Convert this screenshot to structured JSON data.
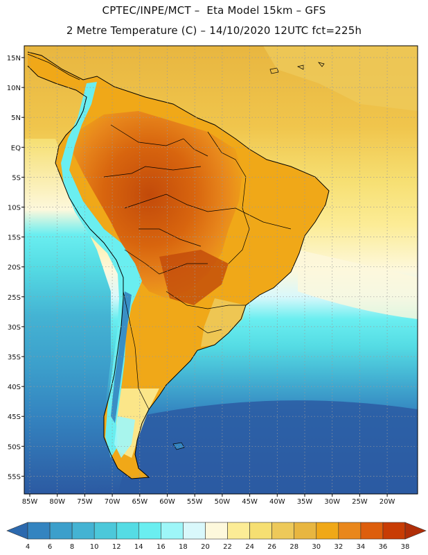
{
  "header": {
    "line1": "CPTEC/INPE/MCT –  Eta Model 15km – GFS",
    "line2": "2 Metre Temperature (C) – 14/10/2020 12UTC fct=225h"
  },
  "map": {
    "lat_labels": [
      "15N",
      "10N",
      "5N",
      "EQ",
      "5S",
      "10S",
      "15S",
      "20S",
      "25S",
      "30S",
      "35S",
      "40S",
      "45S",
      "50S",
      "55S"
    ],
    "lon_labels": [
      "85W",
      "80W",
      "75W",
      "70W",
      "65W",
      "60W",
      "55W",
      "50W",
      "45W",
      "40W",
      "35W",
      "30W",
      "25W",
      "20W"
    ]
  },
  "legend": {
    "values": [
      "4",
      "6",
      "8",
      "10",
      "12",
      "14",
      "16",
      "18",
      "20",
      "22",
      "24",
      "26",
      "28",
      "30",
      "32",
      "34",
      "36",
      "38"
    ],
    "colors": [
      "#2c69ae",
      "#3484c0",
      "#3c9fcb",
      "#44b3d3",
      "#4cc8da",
      "#55dce4",
      "#6aeef0",
      "#9ef6f8",
      "#d9f8fb",
      "#fdf8dc",
      "#fcec96",
      "#f6df72",
      "#edc95a",
      "#e8b640",
      "#f0a818",
      "#e9871c",
      "#dd5e0c",
      "#c83c04",
      "#b02e08"
    ]
  }
}
